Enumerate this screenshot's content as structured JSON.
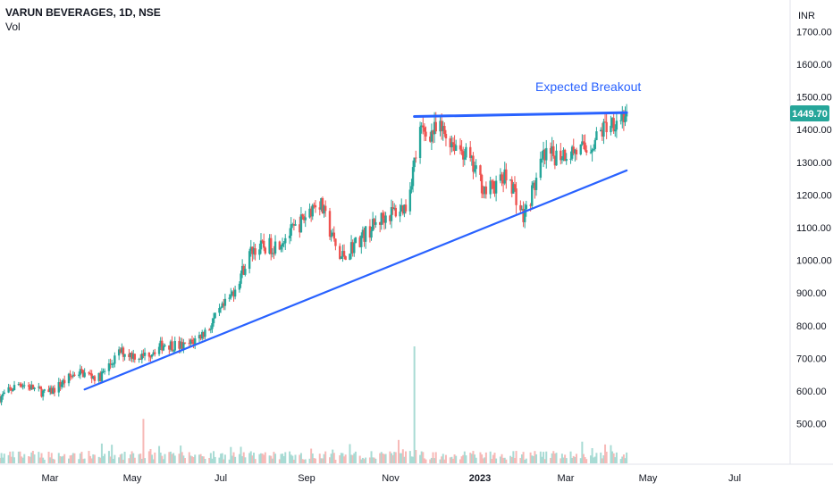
{
  "header": {
    "symbol": "VARUN BEVERAGES, 1D, NSE",
    "indicator": "Vol"
  },
  "currency": "INR",
  "annotation": "Expected Breakout",
  "last_price": "1449.70",
  "colors": {
    "up": "#26a69a",
    "down": "#ef5350",
    "trendline": "#2962ff",
    "price_tag": "#26a69a"
  },
  "chart_data": {
    "type": "candlestick",
    "title": "VARUN BEVERAGES, 1D, NSE",
    "y_axis": {
      "unit": "INR",
      "ticks": [
        "1700.00",
        "1600.00",
        "1500.00",
        "1400.00",
        "1300.00",
        "1200.00",
        "1100.00",
        "1000.00",
        "900.00",
        "800.00",
        "700.00",
        "600.00",
        "500.00"
      ],
      "range": [
        420,
        1720
      ]
    },
    "x_axis": {
      "ticks": [
        "Mar",
        "May",
        "Jul",
        "Sep",
        "Nov",
        "2023",
        "Mar",
        "May",
        "Jul"
      ],
      "range": [
        "2022-02-15",
        "2023-08-20"
      ]
    },
    "price_path": [
      [
        "2022-02-15",
        580
      ],
      [
        "2022-03-01",
        625
      ],
      [
        "2022-03-20",
        590
      ],
      [
        "2022-04-10",
        660
      ],
      [
        "2022-04-25",
        640
      ],
      [
        "2022-05-10",
        720
      ],
      [
        "2022-05-25",
        705
      ],
      [
        "2022-06-10",
        745
      ],
      [
        "2022-06-25",
        735
      ],
      [
        "2022-07-10",
        790
      ],
      [
        "2022-07-25",
        880
      ],
      [
        "2022-08-10",
        1035
      ],
      [
        "2022-08-25",
        1045
      ],
      [
        "2022-09-10",
        1100
      ],
      [
        "2022-09-25",
        1190
      ],
      [
        "2022-10-10",
        1005
      ],
      [
        "2022-10-25",
        1070
      ],
      [
        "2022-11-10",
        1135
      ],
      [
        "2022-11-25",
        1165
      ],
      [
        "2022-12-05",
        1390
      ],
      [
        "2022-12-20",
        1395
      ],
      [
        "2023-01-05",
        1330
      ],
      [
        "2023-01-20",
        1210
      ],
      [
        "2023-02-05",
        1260
      ],
      [
        "2023-02-15",
        1130
      ],
      [
        "2023-03-01",
        1310
      ],
      [
        "2023-03-15",
        1330
      ],
      [
        "2023-04-01",
        1340
      ],
      [
        "2023-04-15",
        1420
      ],
      [
        "2023-04-28",
        1449.7
      ]
    ],
    "volume_spikes": [
      [
        "2022-05-26",
        38
      ],
      [
        "2022-12-01",
        100
      ],
      [
        "2022-11-20",
        20
      ]
    ],
    "trendlines": [
      {
        "name": "support",
        "from": [
          "2022-04-15",
          605
        ],
        "to": [
          "2023-04-28",
          1275
        ]
      },
      {
        "name": "resistance",
        "from": [
          "2022-12-01",
          1440
        ],
        "to": [
          "2023-04-28",
          1452
        ]
      }
    ],
    "last_price": 1449.7,
    "grid": false
  }
}
